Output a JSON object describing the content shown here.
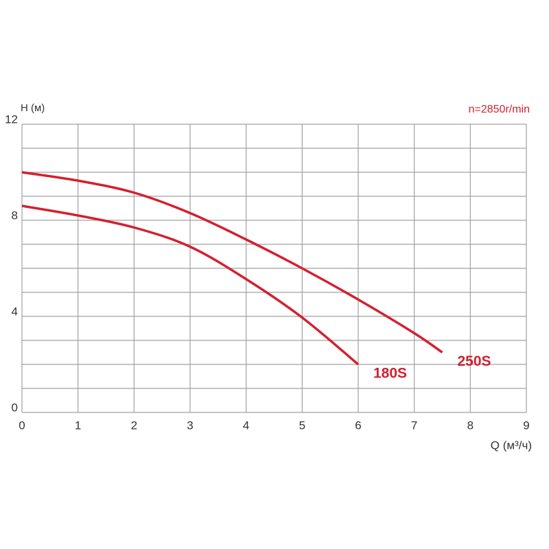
{
  "chart_data": {
    "type": "line",
    "y_label": "H (м)",
    "x_label": "Q (м³/ч)",
    "annotation": "n=2850r/min",
    "xlim": [
      0,
      9
    ],
    "xticks": [
      0,
      1,
      2,
      3,
      4,
      5,
      6,
      7,
      8,
      9
    ],
    "ylim": [
      0,
      12
    ],
    "yticks": [
      0,
      4,
      8,
      12
    ],
    "ygrid": [
      0,
      1,
      2,
      3,
      4,
      5,
      6,
      7,
      8,
      9,
      10,
      11,
      12
    ],
    "grid": true,
    "series": [
      {
        "name": "250S",
        "color": "#d42030",
        "x": [
          0,
          1,
          2,
          3,
          4,
          5,
          6,
          7,
          7.5
        ],
        "values": [
          10,
          9.65,
          9.15,
          8.3,
          7.2,
          6.0,
          4.7,
          3.3,
          2.5
        ]
      },
      {
        "name": "180S",
        "color": "#d42030",
        "x": [
          0,
          1,
          2,
          3,
          4,
          5,
          6
        ],
        "values": [
          8.6,
          8.2,
          7.7,
          6.9,
          5.55,
          3.95,
          2.0
        ]
      }
    ]
  }
}
